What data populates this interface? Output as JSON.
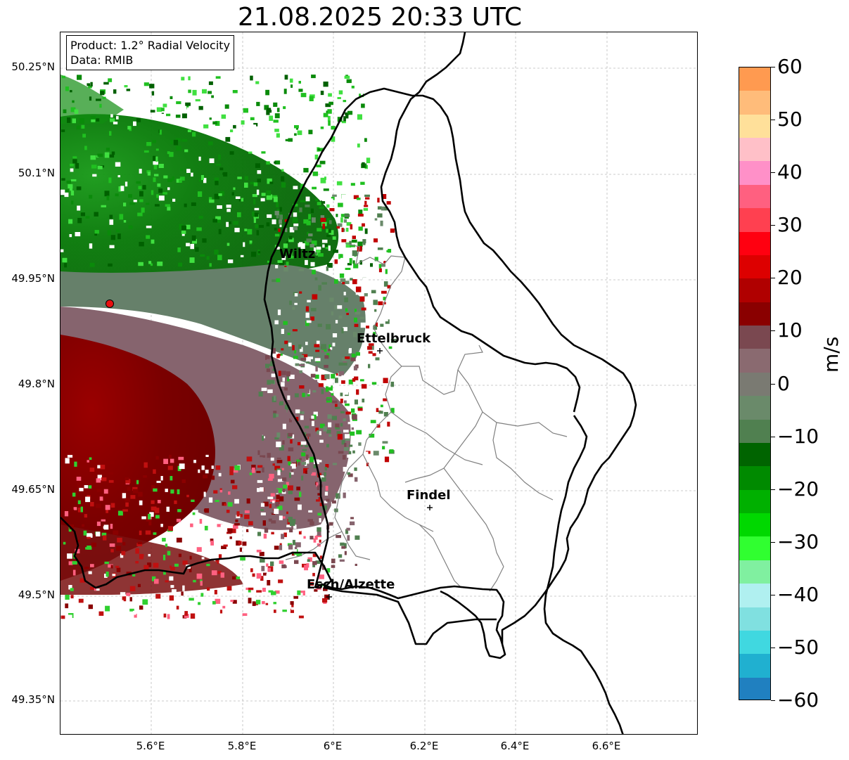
{
  "title": "21.08.2025 20:33 UTC",
  "info_box": {
    "product": "Product: 1.2° Radial Velocity",
    "data": "Data: RMIB"
  },
  "map": {
    "lon_range": [
      5.42,
      6.79
    ],
    "lat_range": [
      49.3,
      50.31
    ],
    "lat_ticks": [
      "50.25°N",
      "50.1°N",
      "49.95°N",
      "49.8°N",
      "49.65°N",
      "49.5°N",
      "49.35°N"
    ],
    "lon_ticks": [
      "5.6°E",
      "5.8°E",
      "6°E",
      "6.2°E",
      "6.4°E",
      "6.6°E"
    ],
    "gridlines": "dashed grey",
    "radar_site_marker": "red-circle",
    "cities": [
      {
        "name": "Wiltz"
      },
      {
        "name": "Ettelbruck"
      },
      {
        "name": "Findel"
      },
      {
        "name": "Esch/Alzette"
      }
    ]
  },
  "colorbar": {
    "range": [
      -60,
      60
    ],
    "ticks": [
      "60",
      "50",
      "40",
      "30",
      "20",
      "10",
      "0",
      "−10",
      "−20",
      "−30",
      "−40",
      "−50",
      "−60"
    ],
    "unit": "m/s",
    "colors_top_to_bottom": [
      "#ff9a50",
      "#ffbc7a",
      "#ffe09a",
      "#ffc0c8",
      "#ff90c8",
      "#ff6080",
      "#ff4050",
      "#ff0010",
      "#dd0000",
      "#b00000",
      "#8a0000",
      "#7a4850",
      "#8a6a70",
      "#7a7a72",
      "#6a8a6a",
      "#508050",
      "#006400",
      "#008a00",
      "#00b000",
      "#00d800",
      "#30ff30",
      "#80f0a0",
      "#b0f0f0",
      "#80e0e0",
      "#40d8e0",
      "#20b0d0",
      "#2080c0"
    ]
  }
}
